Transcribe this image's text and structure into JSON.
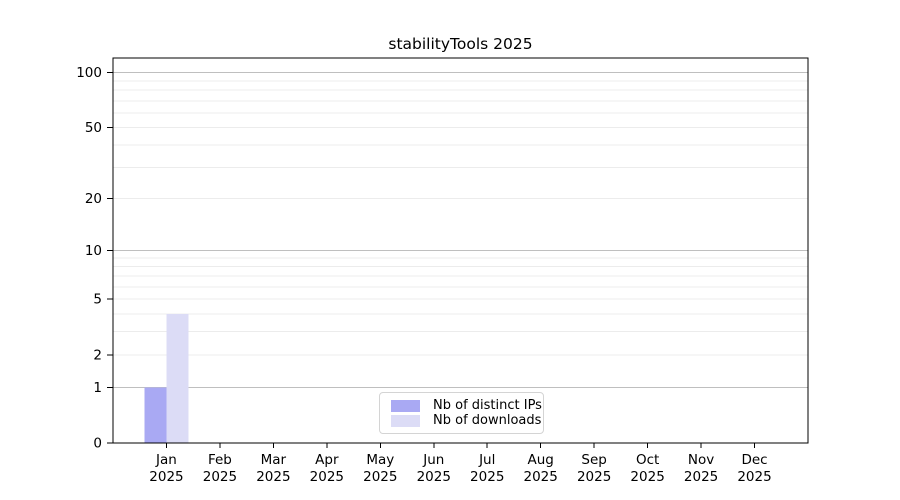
{
  "chart_data": {
    "type": "bar",
    "title": "stabilityTools 2025",
    "xlabel": "",
    "ylabel": "",
    "categories": [
      "Jan",
      "Feb",
      "Mar",
      "Apr",
      "May",
      "Jun",
      "Jul",
      "Aug",
      "Sep",
      "Oct",
      "Nov",
      "Dec"
    ],
    "x_year_label": "2025",
    "series": [
      {
        "name": "Nb of distinct IPs",
        "color": "#a9a9f3",
        "values": [
          1,
          0,
          0,
          0,
          0,
          0,
          0,
          0,
          0,
          0,
          0,
          0
        ]
      },
      {
        "name": "Nb of downloads",
        "color": "#dcdcf6",
        "values": [
          4,
          0,
          0,
          0,
          0,
          0,
          0,
          0,
          0,
          0,
          0,
          0
        ]
      }
    ],
    "yscale": "log1p",
    "ylim": [
      0,
      120
    ],
    "yticks": [
      0,
      1,
      2,
      5,
      10,
      20,
      50,
      100
    ],
    "major_gridlines": [
      1,
      10,
      100
    ],
    "minor_gridlines": [
      2,
      3,
      4,
      5,
      6,
      7,
      8,
      9,
      20,
      30,
      40,
      50,
      60,
      70,
      80,
      90
    ],
    "grid": true,
    "legend_position": "lower center"
  },
  "colors": {
    "bar_distinct_ips": "#a9a9f3",
    "bar_downloads": "#dcdcf6",
    "major_grid": "#bfbfbf",
    "minor_grid": "#ececec",
    "axis": "#000000",
    "text": "#000000",
    "legend_border": "#d4d4d4",
    "background": "#ffffff"
  }
}
